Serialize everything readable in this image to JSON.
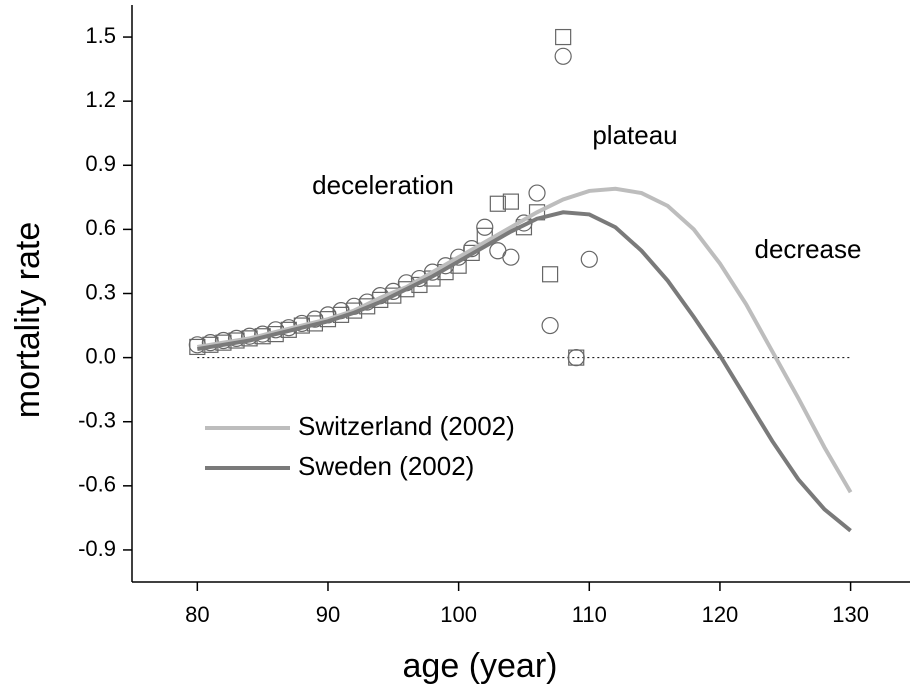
{
  "chart_data": {
    "type": "line",
    "x_label": "age (year)",
    "y_label": "mortality rate",
    "xlim": [
      75,
      134.7
    ],
    "ylim": [
      -1.05,
      1.65
    ],
    "xticks": [
      80,
      90,
      100,
      110,
      120,
      130
    ],
    "yticks": [
      -0.9,
      -0.6,
      -0.3,
      {
        "value": 0,
        "label": "0.0"
      },
      0.3,
      0.6,
      0.9,
      1.2,
      1.5
    ],
    "hline": 0,
    "annotations": [
      "deceleration",
      "plateau",
      "decrease"
    ],
    "x": [
      80,
      82,
      84,
      86,
      88,
      90,
      92,
      94,
      96,
      98,
      100,
      102,
      104,
      106,
      108,
      110,
      112,
      114,
      116,
      118,
      120,
      122,
      124,
      126,
      128,
      130
    ],
    "series": [
      {
        "name": "Switzerland (2002)",
        "color": "#bdbdbd",
        "values": [
          0.05,
          0.07,
          0.09,
          0.12,
          0.15,
          0.18,
          0.22,
          0.28,
          0.33,
          0.4,
          0.47,
          0.54,
          0.61,
          0.68,
          0.74,
          0.78,
          0.79,
          0.77,
          0.71,
          0.6,
          0.44,
          0.25,
          0.03,
          -0.19,
          -0.42,
          -0.63
        ]
      },
      {
        "name": "Sweden (2002)",
        "color": "#7a7a7a",
        "values": [
          0.04,
          0.06,
          0.08,
          0.11,
          0.14,
          0.17,
          0.21,
          0.26,
          0.32,
          0.38,
          0.45,
          0.52,
          0.59,
          0.65,
          0.68,
          0.67,
          0.61,
          0.5,
          0.36,
          0.19,
          0.01,
          -0.19,
          -0.39,
          -0.57,
          -0.71,
          -0.81
        ]
      }
    ],
    "points": [
      {
        "marker": "square",
        "color": "#666666",
        "x": [
          80,
          81,
          82,
          83,
          84,
          85,
          86,
          87,
          88,
          89,
          90,
          91,
          92,
          93,
          94,
          95,
          96,
          97,
          98,
          99,
          100,
          101,
          102,
          103,
          104,
          105,
          106,
          107,
          108,
          109
        ],
        "values": [
          0.05,
          0.06,
          0.07,
          0.08,
          0.09,
          0.1,
          0.11,
          0.13,
          0.15,
          0.16,
          0.18,
          0.2,
          0.22,
          0.24,
          0.27,
          0.29,
          0.32,
          0.34,
          0.37,
          0.4,
          0.43,
          0.49,
          0.57,
          0.72,
          0.73,
          0.61,
          0.68,
          0.39,
          1.5,
          0.0
        ]
      },
      {
        "marker": "circle",
        "color": "#666666",
        "x": [
          80,
          81,
          82,
          83,
          84,
          85,
          86,
          87,
          88,
          89,
          90,
          91,
          92,
          93,
          94,
          95,
          96,
          97,
          98,
          99,
          100,
          101,
          102,
          103,
          104,
          105,
          106,
          107,
          108,
          109,
          110
        ],
        "values": [
          0.06,
          0.07,
          0.08,
          0.09,
          0.1,
          0.11,
          0.13,
          0.14,
          0.16,
          0.18,
          0.2,
          0.22,
          0.24,
          0.26,
          0.29,
          0.31,
          0.35,
          0.37,
          0.4,
          0.43,
          0.47,
          0.51,
          0.61,
          0.5,
          0.47,
          0.63,
          0.77,
          0.15,
          1.41,
          0.0,
          0.46
        ]
      }
    ]
  }
}
